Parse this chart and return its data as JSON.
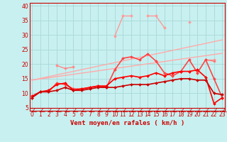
{
  "title": "",
  "xlabel": "Vent moyen/en rafales ( km/h )",
  "background_color": "#c8f0f0",
  "grid_color": "#a8d8d8",
  "x": [
    0,
    1,
    2,
    3,
    4,
    5,
    6,
    7,
    8,
    9,
    10,
    11,
    12,
    13,
    14,
    15,
    16,
    17,
    18,
    19,
    20,
    21,
    22,
    23
  ],
  "ylim": [
    4,
    41
  ],
  "xlim": [
    -0.3,
    23.3
  ],
  "yticks": [
    5,
    10,
    15,
    20,
    25,
    30,
    35,
    40
  ],
  "xticks": [
    0,
    1,
    2,
    3,
    4,
    5,
    6,
    7,
    8,
    9,
    10,
    11,
    12,
    13,
    14,
    15,
    16,
    17,
    18,
    19,
    20,
    21,
    22,
    23
  ],
  "series": [
    {
      "color": "#ffaaaa",
      "linewidth": 1.0,
      "marker": null,
      "values": [
        14.5,
        15.1,
        15.7,
        16.3,
        16.9,
        17.5,
        18.1,
        18.7,
        19.3,
        19.9,
        20.5,
        21.1,
        21.7,
        22.3,
        22.9,
        23.5,
        24.1,
        24.7,
        25.3,
        25.9,
        26.5,
        27.1,
        27.7,
        28.3
      ]
    },
    {
      "color": "#ffaaaa",
      "linewidth": 1.0,
      "marker": null,
      "values": [
        14.5,
        14.9,
        15.3,
        15.7,
        16.1,
        16.5,
        16.9,
        17.3,
        17.7,
        18.1,
        18.5,
        18.9,
        19.3,
        19.7,
        20.1,
        20.5,
        20.9,
        21.3,
        21.7,
        22.1,
        22.5,
        22.9,
        23.3,
        23.7
      ]
    },
    {
      "color": "#ff9999",
      "linewidth": 1.0,
      "marker": "D",
      "markersize": 2.0,
      "values": [
        null,
        null,
        null,
        null,
        null,
        null,
        null,
        null,
        null,
        null,
        29.5,
        36.5,
        36.5,
        null,
        36.5,
        36.5,
        32.5,
        null,
        null,
        34.5,
        null,
        21.5,
        21.5,
        null
      ]
    },
    {
      "color": "#ff8888",
      "linewidth": 1.0,
      "marker": "D",
      "markersize": 2.0,
      "values": [
        null,
        null,
        null,
        19.5,
        18.5,
        19.0,
        null,
        null,
        null,
        null,
        null,
        null,
        null,
        null,
        null,
        null,
        null,
        null,
        null,
        null,
        null,
        null,
        null,
        null
      ]
    },
    {
      "color": "#ff7777",
      "linewidth": 1.0,
      "marker": "D",
      "markersize": 2.0,
      "values": [
        null,
        null,
        null,
        null,
        null,
        null,
        null,
        null,
        null,
        null,
        null,
        null,
        null,
        null,
        null,
        null,
        null,
        null,
        null,
        null,
        null,
        21.5,
        21.0,
        null
      ]
    },
    {
      "color": "#ff4444",
      "linewidth": 1.2,
      "marker": "D",
      "markersize": 2.0,
      "values": [
        8.5,
        10.5,
        10.5,
        13.5,
        13.0,
        11.5,
        11.5,
        12.0,
        12.5,
        12.0,
        18.0,
        22.0,
        22.5,
        21.5,
        23.5,
        21.0,
        17.0,
        16.0,
        17.5,
        21.5,
        17.0,
        21.5,
        15.0,
        8.5
      ]
    },
    {
      "color": "#ff0000",
      "linewidth": 1.2,
      "marker": "D",
      "markersize": 2.0,
      "values": [
        9.0,
        10.5,
        11.0,
        13.0,
        13.5,
        11.0,
        11.5,
        12.0,
        12.5,
        12.5,
        15.0,
        15.5,
        16.0,
        15.5,
        16.0,
        17.0,
        16.0,
        17.0,
        17.5,
        17.5,
        18.0,
        15.5,
        6.5,
        8.5
      ]
    },
    {
      "color": "#cc0000",
      "linewidth": 1.2,
      "marker": "D",
      "markersize": 2.0,
      "values": [
        8.5,
        10.5,
        10.5,
        11.0,
        12.0,
        11.0,
        11.0,
        11.5,
        12.0,
        12.0,
        12.0,
        12.5,
        13.0,
        13.0,
        13.0,
        13.5,
        14.0,
        14.5,
        15.0,
        15.0,
        14.5,
        14.5,
        10.0,
        9.5
      ]
    }
  ],
  "arrow_color": "#cc0000",
  "text_color": "#cc0000",
  "axis_label_fontsize": 6.5,
  "tick_fontsize": 5.5
}
